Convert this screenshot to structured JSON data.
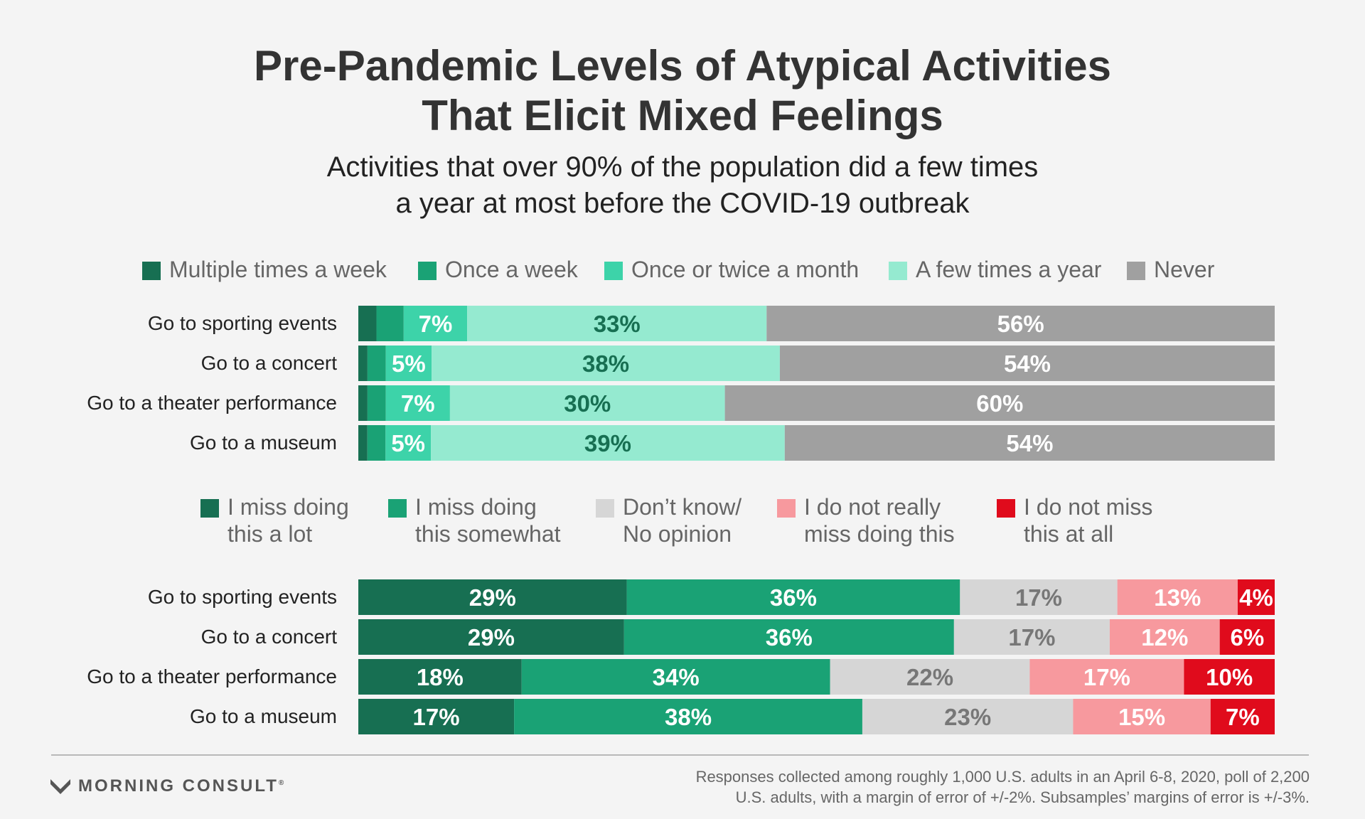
{
  "title_line1": "Pre-Pandemic Levels of Atypical Activities",
  "title_line2": "That Elicit Mixed Feelings",
  "subtitle_line1": "Activities that over 90% of the population did a few times",
  "subtitle_line2": "a year at most before the COVID-19 outbreak",
  "brand": "MORNING CONSULT",
  "brand_mark": "®",
  "footnote_line1": "Responses collected among roughly 1,000 U.S. adults in an April 6-8, 2020, poll of 2,200",
  "footnote_line2": "U.S. adults, with a margin of error of +/-2%. Subsamples’ margins of error is +/-3%.",
  "chart_data": [
    {
      "type": "bar",
      "orientation": "horizontal",
      "stacked": true,
      "categories": [
        "Go to sporting events",
        "Go to a concert",
        "Go to a theater performance",
        "Go to a museum"
      ],
      "series": [
        {
          "name": "Multiple times a week",
          "color": "#176f52",
          "values": [
            2,
            1,
            1,
            1
          ],
          "labels": [
            "",
            "",
            "",
            ""
          ]
        },
        {
          "name": "Once a week",
          "color": "#1aa275",
          "values": [
            3,
            2,
            2,
            2
          ],
          "labels": [
            "",
            "",
            "",
            ""
          ]
        },
        {
          "name": "Once or twice a month",
          "color": "#3dd3a9",
          "values": [
            7,
            5,
            7,
            5
          ],
          "labels": [
            "7%",
            "5%",
            "7%",
            "5%"
          ]
        },
        {
          "name": "A few times a year",
          "color": "#95ead0",
          "values": [
            33,
            38,
            30,
            39
          ],
          "labels": [
            "33%",
            "38%",
            "30%",
            "39%"
          ]
        },
        {
          "name": "Never",
          "color": "#a0a0a0",
          "values": [
            56,
            54,
            60,
            54
          ],
          "labels": [
            "56%",
            "54%",
            "60%",
            "54%"
          ]
        }
      ],
      "legend": [
        {
          "lines": [
            "Multiple times a week"
          ]
        },
        {
          "lines": [
            "Once a week"
          ]
        },
        {
          "lines": [
            "Once or twice a month"
          ]
        },
        {
          "lines": [
            "A few times a year"
          ]
        },
        {
          "lines": [
            "Never"
          ]
        }
      ],
      "label_colors": [
        "#ffffff",
        "#ffffff",
        "#ffffff",
        "#176f52",
        "#ffffff"
      ]
    },
    {
      "type": "bar",
      "orientation": "horizontal",
      "stacked": true,
      "categories": [
        "Go to sporting events",
        "Go to a concert",
        "Go to a theater performance",
        "Go to a museum"
      ],
      "series": [
        {
          "name": "I miss doing this a lot",
          "color": "#176f52",
          "values": [
            29,
            29,
            18,
            17
          ],
          "labels": [
            "29%",
            "29%",
            "18%",
            "17%"
          ]
        },
        {
          "name": "I miss doing this somewhat",
          "color": "#1aa275",
          "values": [
            36,
            36,
            34,
            38
          ],
          "labels": [
            "36%",
            "36%",
            "34%",
            "38%"
          ]
        },
        {
          "name": "Don’t know/ No opinion",
          "color": "#d6d6d6",
          "values": [
            17,
            17,
            22,
            23
          ],
          "labels": [
            "17%",
            "17%",
            "22%",
            "23%"
          ]
        },
        {
          "name": "I do not really miss doing this",
          "color": "#f7999e",
          "values": [
            13,
            12,
            17,
            15
          ],
          "labels": [
            "13%",
            "12%",
            "17%",
            "15%"
          ]
        },
        {
          "name": "I do not miss this at all",
          "color": "#e00b1c",
          "values": [
            4,
            6,
            10,
            7
          ],
          "labels": [
            "4%",
            "6%",
            "10%",
            "7%"
          ]
        }
      ],
      "legend": [
        {
          "lines": [
            "I miss doing",
            "this a lot"
          ]
        },
        {
          "lines": [
            "I miss doing",
            "this somewhat"
          ]
        },
        {
          "lines": [
            "Don’t know/",
            "No opinion"
          ]
        },
        {
          "lines": [
            "I do not really",
            "miss doing this"
          ]
        },
        {
          "lines": [
            "I do not miss",
            "this at all"
          ]
        }
      ],
      "label_colors": [
        "#ffffff",
        "#ffffff",
        "#777777",
        "#ffffff",
        "#ffffff"
      ]
    }
  ]
}
